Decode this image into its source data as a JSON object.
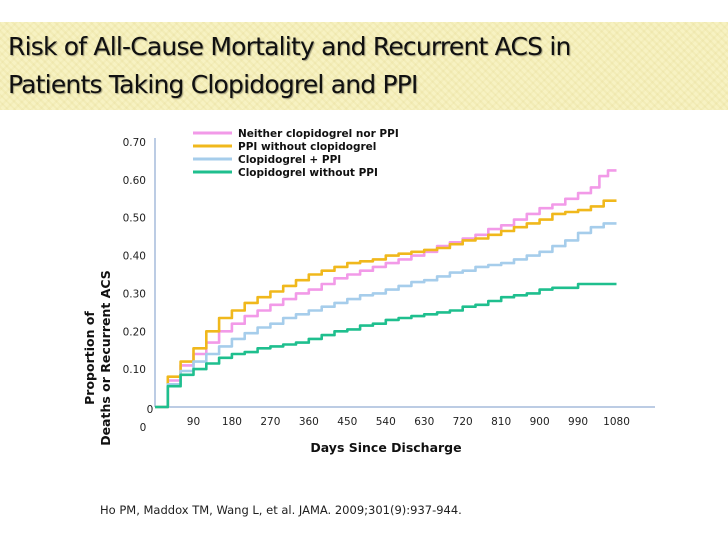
{
  "slide": {
    "title_line1": "Risk of All-Cause Mortality and Recurrent ACS in",
    "title_line2": "Patients Taking Clopidogrel and PPI",
    "citation": "Ho PM, Maddox TM, Wang L, et al. JAMA. 2009;301(9):937-944."
  },
  "chart_data": {
    "type": "line",
    "title": "",
    "xlabel": "Days Since Discharge",
    "ylabel_line1": "Proportion of",
    "ylabel_line2": "Deaths or Recurrent ACS",
    "xlim": [
      0,
      1170
    ],
    "ylim": [
      0,
      0.7
    ],
    "x_origin_label": "0",
    "y_origin_label": "0",
    "x_ticks": [
      90,
      180,
      270,
      360,
      450,
      540,
      630,
      720,
      810,
      900,
      990,
      1080
    ],
    "x_tick_labels": [
      "90",
      "180",
      "270",
      "360",
      "450",
      "540",
      "630",
      "720",
      "810",
      "900",
      "990",
      "1080"
    ],
    "y_ticks": [
      0.1,
      0.2,
      0.3,
      0.4,
      0.5,
      0.6,
      0.7
    ],
    "y_tick_labels": [
      "0.10",
      "0.20",
      "0.30",
      "0.40",
      "0.50",
      "0.60",
      "0.70"
    ],
    "grid": false,
    "legend_position": "top-center",
    "series": [
      {
        "name": "Neither clopidogrel nor PPI",
        "color": "#f29ae8",
        "x": [
          0,
          30,
          60,
          90,
          120,
          150,
          180,
          210,
          240,
          270,
          300,
          330,
          360,
          390,
          420,
          450,
          480,
          510,
          540,
          570,
          600,
          630,
          660,
          690,
          720,
          750,
          780,
          810,
          840,
          870,
          900,
          930,
          960,
          990,
          1020,
          1040,
          1060,
          1080
        ],
        "y": [
          0,
          0.07,
          0.11,
          0.14,
          0.17,
          0.2,
          0.22,
          0.24,
          0.255,
          0.27,
          0.285,
          0.3,
          0.31,
          0.325,
          0.34,
          0.35,
          0.36,
          0.37,
          0.38,
          0.39,
          0.4,
          0.41,
          0.425,
          0.435,
          0.445,
          0.455,
          0.47,
          0.48,
          0.495,
          0.51,
          0.525,
          0.535,
          0.55,
          0.565,
          0.58,
          0.61,
          0.625,
          0.625
        ]
      },
      {
        "name": "PPI without clopidogrel",
        "color": "#f0b81c",
        "x": [
          0,
          30,
          60,
          90,
          120,
          150,
          180,
          210,
          240,
          270,
          300,
          330,
          360,
          390,
          420,
          450,
          480,
          510,
          540,
          570,
          600,
          630,
          660,
          690,
          720,
          750,
          780,
          810,
          840,
          870,
          900,
          930,
          960,
          990,
          1020,
          1050,
          1080
        ],
        "y": [
          0,
          0.08,
          0.12,
          0.155,
          0.2,
          0.235,
          0.255,
          0.275,
          0.29,
          0.305,
          0.32,
          0.335,
          0.35,
          0.36,
          0.37,
          0.38,
          0.385,
          0.39,
          0.4,
          0.405,
          0.41,
          0.415,
          0.42,
          0.43,
          0.44,
          0.445,
          0.455,
          0.465,
          0.475,
          0.485,
          0.495,
          0.51,
          0.515,
          0.52,
          0.53,
          0.545,
          0.545
        ]
      },
      {
        "name": "Clopidogrel + PPI",
        "color": "#a6cdeb",
        "x": [
          0,
          30,
          60,
          90,
          120,
          150,
          180,
          210,
          240,
          270,
          300,
          330,
          360,
          390,
          420,
          450,
          480,
          510,
          540,
          570,
          600,
          630,
          660,
          690,
          720,
          750,
          780,
          810,
          840,
          870,
          900,
          930,
          960,
          990,
          1020,
          1050,
          1080
        ],
        "y": [
          0,
          0.06,
          0.095,
          0.12,
          0.14,
          0.16,
          0.18,
          0.195,
          0.21,
          0.22,
          0.235,
          0.245,
          0.255,
          0.265,
          0.275,
          0.285,
          0.295,
          0.3,
          0.31,
          0.32,
          0.33,
          0.335,
          0.345,
          0.355,
          0.36,
          0.37,
          0.375,
          0.38,
          0.39,
          0.4,
          0.41,
          0.425,
          0.44,
          0.46,
          0.475,
          0.485,
          0.485
        ]
      },
      {
        "name": "Clopidogrel without PPI",
        "color": "#1fbf8e",
        "x": [
          0,
          30,
          60,
          90,
          120,
          150,
          180,
          210,
          240,
          270,
          300,
          330,
          360,
          390,
          420,
          450,
          480,
          510,
          540,
          570,
          600,
          630,
          660,
          690,
          720,
          750,
          780,
          810,
          840,
          870,
          900,
          930,
          960,
          990,
          1020,
          1050,
          1080
        ],
        "y": [
          0,
          0.055,
          0.085,
          0.1,
          0.115,
          0.13,
          0.14,
          0.145,
          0.155,
          0.16,
          0.165,
          0.17,
          0.18,
          0.19,
          0.2,
          0.205,
          0.215,
          0.22,
          0.23,
          0.235,
          0.24,
          0.245,
          0.25,
          0.255,
          0.265,
          0.27,
          0.28,
          0.29,
          0.295,
          0.3,
          0.31,
          0.315,
          0.315,
          0.325,
          0.325,
          0.325,
          0.325
        ]
      }
    ]
  }
}
